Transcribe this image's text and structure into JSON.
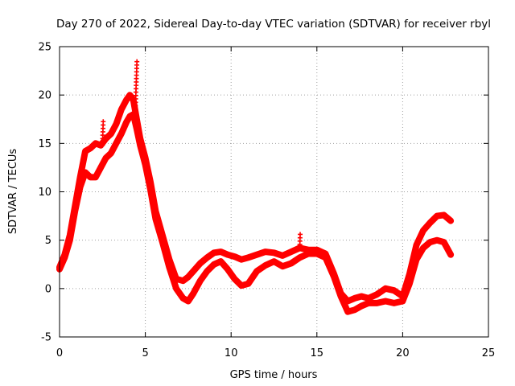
{
  "chart_data": {
    "type": "scatter",
    "title": "Day 270 of 2022, Sidereal Day-to-day VTEC variation (SDTVAR) for receiver rbyl",
    "xlabel": "GPS time / hours",
    "ylabel": "SDTVAR / TECUs",
    "xlim": [
      0,
      25
    ],
    "ylim": [
      -5,
      25
    ],
    "xticks": [
      0,
      5,
      10,
      15,
      20,
      25
    ],
    "yticks": [
      -5,
      0,
      5,
      10,
      15,
      20,
      25
    ],
    "grid": true,
    "marker": "+",
    "color": "#ff0000",
    "series": [
      {
        "name": "upper track",
        "x": [
          0,
          0.3,
          0.6,
          0.9,
          1.2,
          1.5,
          1.8,
          2.1,
          2.4,
          2.7,
          3.0,
          3.3,
          3.6,
          3.9,
          4.1,
          4.3,
          4.5,
          4.7,
          5.0,
          5.3,
          5.6,
          6.0,
          6.4,
          6.8,
          7.2,
          7.5,
          7.8,
          8.2,
          8.6,
          9.0,
          9.4,
          9.8,
          10.2,
          10.6,
          11.0,
          11.5,
          12.0,
          12.5,
          13.0,
          13.5,
          14.0,
          14.5,
          15.0,
          15.5,
          16.0,
          16.4,
          16.8,
          17.2,
          17.6,
          18.0,
          18.5,
          19.0,
          19.5,
          20.0,
          20.4,
          20.8,
          21.2,
          21.6,
          22.0,
          22.4,
          22.8
        ],
        "y": [
          2.2,
          3.5,
          5.5,
          8.5,
          11.5,
          14.2,
          14.5,
          15.0,
          14.8,
          15.5,
          16.0,
          17.0,
          18.5,
          19.5,
          20.0,
          19.5,
          17.5,
          15.5,
          13.5,
          11.0,
          8.0,
          5.5,
          3.0,
          1.0,
          0.8,
          1.2,
          1.8,
          2.6,
          3.2,
          3.7,
          3.8,
          3.5,
          3.3,
          3.0,
          3.2,
          3.5,
          3.8,
          3.7,
          3.4,
          3.8,
          4.2,
          4.0,
          4.0,
          3.6,
          1.5,
          -0.5,
          -1.3,
          -1.0,
          -0.8,
          -1.0,
          -0.6,
          0.0,
          -0.2,
          -0.8,
          1.5,
          4.5,
          6.0,
          6.8,
          7.5,
          7.6,
          7.0
        ]
      },
      {
        "name": "lower track",
        "x": [
          0,
          0.3,
          0.6,
          0.9,
          1.2,
          1.5,
          1.8,
          2.1,
          2.4,
          2.7,
          3.0,
          3.3,
          3.6,
          3.9,
          4.1,
          4.3,
          4.5,
          4.7,
          5.0,
          5.3,
          5.6,
          6.0,
          6.4,
          6.8,
          7.2,
          7.5,
          7.8,
          8.2,
          8.6,
          9.0,
          9.4,
          9.8,
          10.2,
          10.6,
          11.0,
          11.5,
          12.0,
          12.5,
          13.0,
          13.5,
          14.0,
          14.5,
          15.0,
          15.5,
          16.0,
          16.4,
          16.8,
          17.2,
          17.6,
          18.0,
          18.5,
          19.0,
          19.5,
          20.0,
          20.4,
          20.8,
          21.2,
          21.6,
          22.0,
          22.4,
          22.8
        ],
        "y": [
          2.0,
          3.2,
          5.0,
          8.0,
          10.5,
          12.0,
          11.5,
          11.5,
          12.5,
          13.5,
          14.0,
          15.0,
          16.0,
          17.2,
          17.8,
          18.0,
          16.5,
          14.8,
          12.8,
          10.2,
          7.2,
          4.8,
          2.2,
          0.0,
          -1.0,
          -1.3,
          -0.5,
          0.8,
          1.8,
          2.5,
          2.8,
          2.0,
          1.0,
          0.3,
          0.5,
          1.8,
          2.4,
          2.8,
          2.3,
          2.6,
          3.2,
          3.6,
          3.6,
          3.2,
          1.2,
          -0.8,
          -2.4,
          -2.2,
          -1.8,
          -1.5,
          -1.5,
          -1.3,
          -1.5,
          -1.3,
          0.5,
          3.0,
          4.2,
          4.8,
          5.0,
          4.8,
          3.5
        ]
      }
    ],
    "annotations": [
      {
        "name": "peak spike",
        "x": 4.4,
        "y": 23.7
      },
      {
        "name": "morning bump",
        "x": 2.5,
        "y": 17.3
      },
      {
        "name": "afternoon spike",
        "x": 14.0,
        "y": 5.9
      }
    ]
  }
}
